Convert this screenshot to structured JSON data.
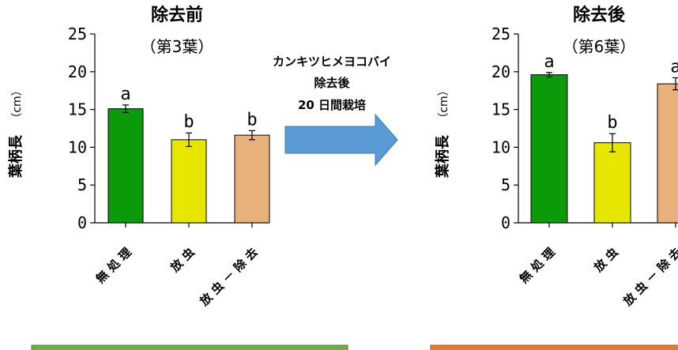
{
  "charts": [
    {
      "chart_data": {
        "type": "bar",
        "title": "除去前",
        "subtitle": "（第3葉）",
        "ylabel": "葉柄長",
        "ylabel_unit": "（cm）",
        "categories": [
          "無 処 理",
          "放 虫",
          "放 虫 － 除 去"
        ],
        "values": [
          15.1,
          11.0,
          11.6
        ],
        "errors": [
          0.5,
          0.9,
          0.6
        ],
        "letters": [
          "a",
          "b",
          "b"
        ],
        "colors": [
          "#0a9a0a",
          "#e6e600",
          "#e8b07a"
        ],
        "ylim": [
          0,
          25
        ],
        "yticks": [
          "0",
          "5",
          "10",
          "15",
          "20",
          "25"
        ],
        "grid": false
      },
      "panel_color": "#70ad47"
    },
    {
      "chart_data": {
        "type": "bar",
        "title": "除去後",
        "subtitle": "（第6葉）",
        "ylabel": "葉柄長",
        "ylabel_unit": "（cm）",
        "categories": [
          "無 処 理",
          "放 虫",
          "放 虫 － 除 去"
        ],
        "values": [
          19.6,
          10.6,
          18.4
        ],
        "errors": [
          0.3,
          1.2,
          0.8
        ],
        "letters": [
          "a",
          "b",
          "a"
        ],
        "colors": [
          "#0a9a0a",
          "#e6e600",
          "#e8b07a"
        ],
        "ylim": [
          0,
          25
        ],
        "yticks": [
          "0",
          "5",
          "10",
          "15",
          "20",
          "25"
        ],
        "grid": false
      },
      "panel_color": "#e07b39"
    }
  ],
  "arrow": {
    "line1": "カンキツヒメヨコバイ",
    "line2": "除去後",
    "line3": "20 日間栽培",
    "color": "#5b9bd5"
  }
}
